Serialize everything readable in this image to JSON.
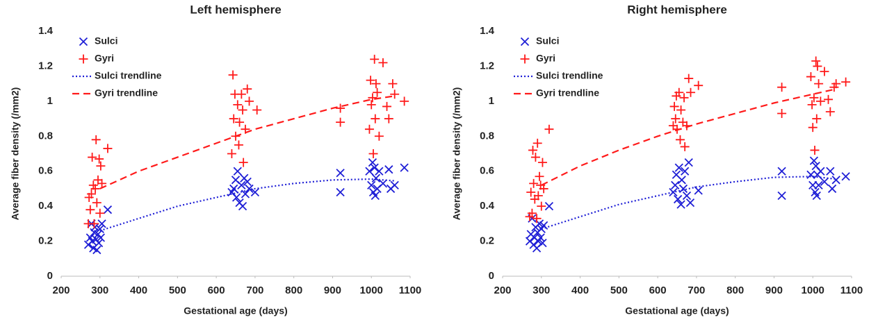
{
  "chart_data": [
    {
      "type": "scatter",
      "title": "Left hemisphere",
      "xlabel": "Gestational age (days)",
      "ylabel": "Average fiber density (/mm2)",
      "xlim": [
        200,
        1100
      ],
      "ylim": [
        0,
        1.4
      ],
      "xticks": [
        200,
        300,
        400,
        500,
        600,
        700,
        800,
        900,
        1000,
        1100
      ],
      "yticks": [
        0,
        0.2,
        0.4,
        0.6,
        0.8,
        1,
        1.2,
        1.4
      ],
      "grid": false,
      "legend": "upper-left",
      "series": [
        {
          "name": "Sulci",
          "kind": "scatter",
          "marker": "x",
          "color": "#1f1fd6",
          "x": [
            270,
            275,
            278,
            280,
            283,
            285,
            287,
            290,
            292,
            295,
            297,
            300,
            302,
            305,
            320,
            640,
            645,
            650,
            652,
            655,
            660,
            665,
            668,
            672,
            675,
            680,
            685,
            700,
            920,
            920,
            995,
            1000,
            1003,
            1005,
            1008,
            1010,
            1012,
            1015,
            1020,
            1030,
            1045,
            1050,
            1060,
            1085
          ],
          "values": [
            0.18,
            0.22,
            0.3,
            0.2,
            0.16,
            0.25,
            0.28,
            0.21,
            0.15,
            0.24,
            0.19,
            0.27,
            0.22,
            0.3,
            0.38,
            0.48,
            0.5,
            0.55,
            0.45,
            0.6,
            0.42,
            0.52,
            0.4,
            0.56,
            0.47,
            0.54,
            0.5,
            0.48,
            0.59,
            0.48,
            0.6,
            0.52,
            0.65,
            0.48,
            0.62,
            0.46,
            0.56,
            0.5,
            0.6,
            0.53,
            0.61,
            0.5,
            0.52,
            0.62
          ]
        },
        {
          "name": "Gyri",
          "kind": "scatter",
          "marker": "+",
          "color": "#ff1a1a",
          "x": [
            270,
            272,
            275,
            278,
            280,
            283,
            285,
            288,
            290,
            292,
            295,
            298,
            300,
            302,
            305,
            320,
            640,
            643,
            645,
            648,
            650,
            655,
            658,
            660,
            665,
            668,
            670,
            675,
            680,
            685,
            705,
            920,
            920,
            995,
            998,
            1000,
            1003,
            1005,
            1008,
            1010,
            1012,
            1015,
            1020,
            1030,
            1040,
            1045,
            1055,
            1060,
            1085
          ],
          "values": [
            0.3,
            0.45,
            0.38,
            0.47,
            0.68,
            0.52,
            0.3,
            0.5,
            0.78,
            0.42,
            0.55,
            0.67,
            0.36,
            0.63,
            0.53,
            0.73,
            0.7,
            1.15,
            0.9,
            1.04,
            0.8,
            0.98,
            0.75,
            0.88,
            1.04,
            0.95,
            0.65,
            0.84,
            1.07,
            1.0,
            0.95,
            0.96,
            0.88,
            0.84,
            1.12,
            0.98,
            1.02,
            0.7,
            1.24,
            0.9,
            1.1,
            1.05,
            0.8,
            1.22,
            0.97,
            0.9,
            1.1,
            1.04,
            1.0
          ]
        },
        {
          "name": "Sulci trendline",
          "kind": "line",
          "dash": "2,3",
          "color": "#1f1fd6",
          "x": [
            300,
            400,
            500,
            600,
            700,
            800,
            900,
            1000,
            1060
          ],
          "values": [
            0.26,
            0.33,
            0.4,
            0.45,
            0.5,
            0.53,
            0.55,
            0.555,
            0.545
          ]
        },
        {
          "name": "Gyri trendline",
          "kind": "line",
          "dash": "10,6",
          "color": "#ff1a1a",
          "x": [
            300,
            400,
            500,
            600,
            700,
            800,
            900,
            1000,
            1060
          ],
          "values": [
            0.5,
            0.6,
            0.68,
            0.76,
            0.84,
            0.9,
            0.96,
            1.01,
            1.03
          ]
        }
      ]
    },
    {
      "type": "scatter",
      "title": "Right hemisphere",
      "xlabel": "Gestational age (days)",
      "ylabel": "Average fiber density (/mm2)",
      "xlim": [
        200,
        1100
      ],
      "ylim": [
        0,
        1.4
      ],
      "xticks": [
        200,
        300,
        400,
        500,
        600,
        700,
        800,
        900,
        1000,
        1100
      ],
      "yticks": [
        0,
        0.2,
        0.4,
        0.6,
        0.8,
        1,
        1.2,
        1.4
      ],
      "grid": false,
      "legend": "upper-left",
      "series": [
        {
          "name": "Sulci",
          "kind": "scatter",
          "marker": "x",
          "color": "#1f1fd6",
          "x": [
            270,
            273,
            276,
            280,
            282,
            285,
            288,
            290,
            292,
            295,
            298,
            300,
            303,
            306,
            320,
            640,
            645,
            648,
            652,
            655,
            660,
            662,
            666,
            670,
            675,
            680,
            684,
            705,
            920,
            920,
            995,
            1000,
            1003,
            1006,
            1008,
            1010,
            1012,
            1015,
            1020,
            1030,
            1045,
            1050,
            1060,
            1085
          ],
          "values": [
            0.2,
            0.24,
            0.33,
            0.18,
            0.22,
            0.28,
            0.16,
            0.25,
            0.2,
            0.3,
            0.22,
            0.27,
            0.19,
            0.29,
            0.4,
            0.48,
            0.52,
            0.58,
            0.44,
            0.62,
            0.41,
            0.55,
            0.5,
            0.6,
            0.46,
            0.65,
            0.42,
            0.49,
            0.6,
            0.46,
            0.58,
            0.52,
            0.66,
            0.48,
            0.63,
            0.46,
            0.58,
            0.52,
            0.6,
            0.54,
            0.6,
            0.5,
            0.55,
            0.57
          ]
        },
        {
          "name": "Gyri",
          "kind": "scatter",
          "marker": "+",
          "color": "#ff1a1a",
          "x": [
            270,
            273,
            276,
            278,
            280,
            283,
            285,
            288,
            290,
            292,
            295,
            298,
            300,
            303,
            306,
            320,
            640,
            643,
            646,
            648,
            650,
            655,
            658,
            660,
            665,
            668,
            670,
            675,
            680,
            685,
            705,
            920,
            920,
            995,
            998,
            1000,
            1003,
            1005,
            1008,
            1010,
            1012,
            1015,
            1020,
            1030,
            1040,
            1045,
            1055,
            1060,
            1085
          ],
          "values": [
            0.34,
            0.48,
            0.36,
            0.72,
            0.53,
            0.44,
            0.68,
            0.33,
            0.76,
            0.46,
            0.57,
            0.52,
            0.4,
            0.65,
            0.5,
            0.84,
            0.86,
            0.97,
            0.9,
            1.03,
            0.84,
            1.05,
            0.78,
            0.95,
            0.88,
            1.02,
            0.74,
            0.86,
            1.13,
            1.05,
            1.09,
            1.08,
            0.93,
            1.14,
            0.98,
            0.85,
            1.02,
            0.72,
            1.23,
            0.9,
            1.2,
            1.1,
            1.0,
            1.17,
            1.01,
            0.94,
            1.08,
            1.1,
            1.11
          ]
        },
        {
          "name": "Sulci trendline",
          "kind": "line",
          "dash": "2,3",
          "color": "#1f1fd6",
          "x": [
            300,
            400,
            500,
            600,
            700,
            800,
            900,
            1000,
            1060
          ],
          "values": [
            0.27,
            0.34,
            0.41,
            0.46,
            0.51,
            0.54,
            0.565,
            0.57,
            0.555
          ]
        },
        {
          "name": "Gyri trendline",
          "kind": "line",
          "dash": "10,6",
          "color": "#ff1a1a",
          "x": [
            300,
            400,
            500,
            600,
            700,
            800,
            900,
            1000,
            1060
          ],
          "values": [
            0.52,
            0.63,
            0.72,
            0.8,
            0.87,
            0.93,
            0.99,
            1.04,
            1.07
          ]
        }
      ]
    }
  ]
}
